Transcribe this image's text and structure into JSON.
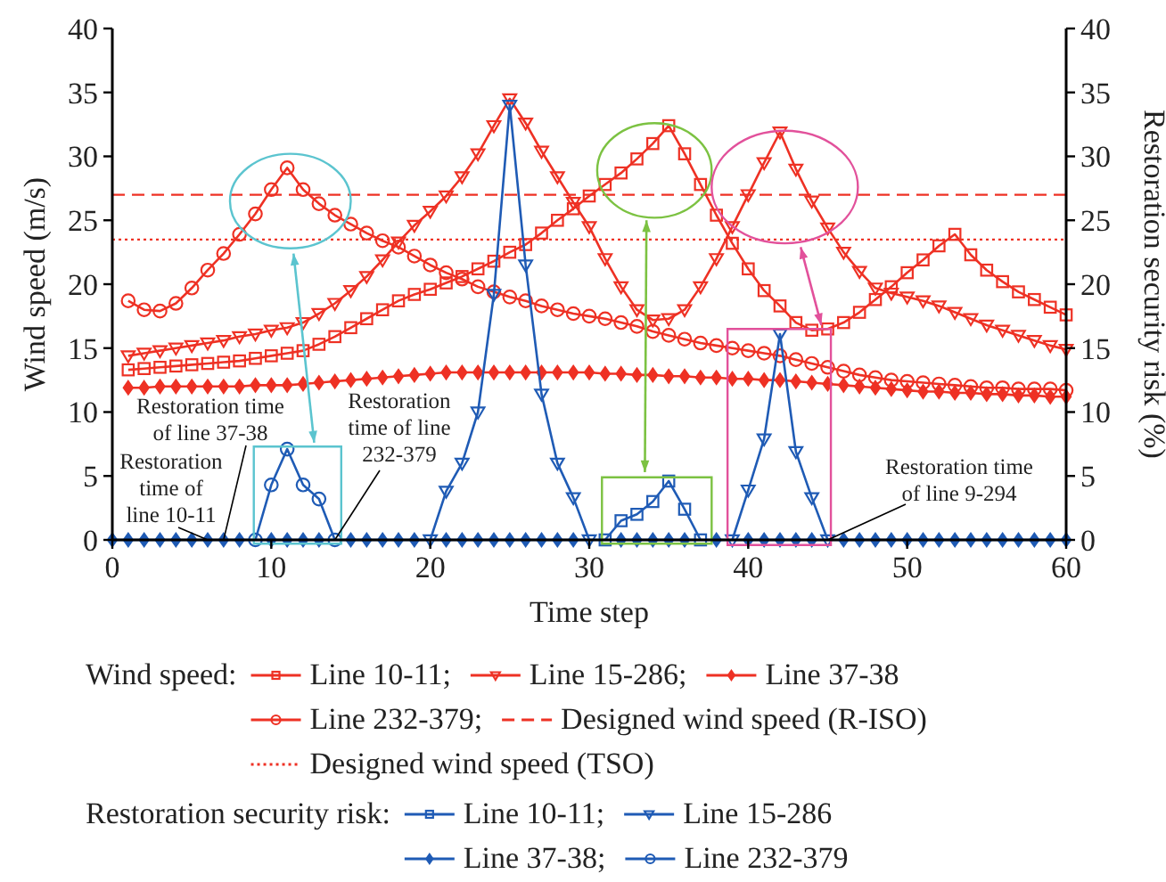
{
  "chart_data": {
    "type": "line",
    "xlabel": "Time step",
    "ylabel": "Wind speed (m/s)",
    "y2label": "Restoration security risk (%)",
    "legend_title": [
      "Wind speed:",
      "Restoration security risk:"
    ],
    "x": [
      1,
      2,
      3,
      4,
      5,
      6,
      7,
      8,
      9,
      10,
      11,
      12,
      13,
      14,
      15,
      16,
      17,
      18,
      19,
      20,
      21,
      22,
      23,
      24,
      25,
      26,
      27,
      28,
      29,
      30,
      31,
      32,
      33,
      34,
      35,
      36,
      37,
      38,
      39,
      40,
      41,
      42,
      43,
      44,
      45,
      46,
      47,
      48,
      49,
      50,
      51,
      52,
      53,
      54,
      55,
      56,
      57,
      58,
      59,
      60
    ],
    "xlim": [
      0,
      60
    ],
    "xticks": [
      0,
      10,
      20,
      30,
      40,
      50,
      60
    ],
    "ylim": [
      0,
      40
    ],
    "yticks": [
      0,
      5,
      10,
      15,
      20,
      25,
      30,
      35,
      40
    ],
    "y2lim": [
      0,
      40
    ],
    "y2ticks": [
      0,
      5,
      10,
      15,
      20,
      25,
      30,
      35,
      40
    ],
    "grid": false,
    "legend": "bottom",
    "line_style": "solid",
    "series": [
      {
        "name": "Line 10-11;",
        "color": "#ee3124",
        "axis": "y",
        "marker": "square",
        "values": [
          13.3,
          13.4,
          13.5,
          13.6,
          13.7,
          13.8,
          13.9,
          14.0,
          14.2,
          14.4,
          14.6,
          14.8,
          15.3,
          15.9,
          16.6,
          17.3,
          18.0,
          18.7,
          19.2,
          19.6,
          20.1,
          20.6,
          21.2,
          21.8,
          22.5,
          23.1,
          24.0,
          25.0,
          25.9,
          26.9,
          27.8,
          28.7,
          29.8,
          31.0,
          32.4,
          30.2,
          27.8,
          25.4,
          23.2,
          21.2,
          19.5,
          18.3,
          17.0,
          16.4,
          16.5,
          17.0,
          17.8,
          18.8,
          19.8,
          20.9,
          21.9,
          23.0,
          23.9,
          22.3,
          21.1,
          20.2,
          19.4,
          18.8,
          18.2,
          17.6
        ]
      },
      {
        "name": "Line 15-286;",
        "color": "#ee3124",
        "axis": "y",
        "marker": "triangle",
        "values": [
          14.4,
          14.6,
          14.8,
          15.0,
          15.2,
          15.4,
          15.6,
          15.9,
          16.1,
          16.4,
          16.6,
          17.0,
          17.7,
          18.5,
          19.5,
          20.6,
          21.9,
          23.3,
          24.6,
          25.7,
          26.9,
          28.4,
          30.2,
          32.4,
          34.5,
          32.6,
          30.4,
          28.4,
          26.4,
          24.5,
          22.0,
          19.8,
          18.0,
          17.2,
          17.3,
          18.0,
          19.8,
          22.0,
          24.5,
          27.0,
          29.5,
          31.9,
          29.0,
          26.5,
          24.4,
          22.5,
          21.0,
          19.7,
          19.3,
          19.0,
          18.7,
          18.3,
          17.8,
          17.3,
          16.8,
          16.4,
          16.0,
          15.6,
          15.2,
          14.9
        ]
      },
      {
        "name": "Line 37-38",
        "color": "#ee3124",
        "axis": "y",
        "marker": "diamond",
        "values": [
          11.9,
          11.9,
          12.0,
          12.0,
          12.0,
          12.0,
          12.0,
          12.0,
          12.1,
          12.1,
          12.1,
          12.2,
          12.3,
          12.4,
          12.5,
          12.6,
          12.7,
          12.8,
          12.9,
          13.0,
          13.1,
          13.1,
          13.1,
          13.1,
          13.1,
          13.1,
          13.1,
          13.1,
          13.1,
          13.1,
          13.0,
          13.0,
          12.9,
          12.9,
          12.8,
          12.8,
          12.7,
          12.7,
          12.6,
          12.6,
          12.5,
          12.5,
          12.4,
          12.3,
          12.2,
          12.1,
          12.0,
          11.9,
          11.8,
          11.7,
          11.6,
          11.6,
          11.5,
          11.5,
          11.4,
          11.4,
          11.3,
          11.3,
          11.2,
          11.2
        ]
      },
      {
        "name": "Line 232-379;",
        "color": "#ee3124",
        "axis": "y",
        "marker": "circle",
        "values": [
          18.7,
          18.0,
          17.9,
          18.5,
          19.7,
          21.1,
          22.4,
          23.9,
          25.5,
          27.4,
          29.1,
          27.4,
          26.3,
          25.4,
          24.7,
          24.0,
          23.4,
          22.9,
          22.2,
          21.5,
          20.9,
          20.4,
          19.8,
          19.4,
          19.0,
          18.7,
          18.3,
          18.0,
          17.7,
          17.5,
          17.3,
          17.0,
          16.7,
          16.3,
          16.0,
          15.7,
          15.4,
          15.2,
          15.0,
          14.8,
          14.6,
          14.4,
          14.1,
          13.8,
          13.5,
          13.2,
          12.9,
          12.7,
          12.5,
          12.4,
          12.3,
          12.2,
          12.1,
          12.0,
          11.9,
          11.9,
          11.8,
          11.8,
          11.8,
          11.7
        ]
      },
      {
        "name": "Line 10-11;",
        "color": "#1f5bb5",
        "axis": "y2",
        "marker": "square",
        "x": [
          31,
          32,
          33,
          34,
          35,
          36,
          37
        ],
        "values": [
          0,
          1.5,
          2.0,
          3.0,
          4.6,
          2.4,
          0
        ]
      },
      {
        "name": "Line 15-286",
        "color": "#1f5bb5",
        "axis": "y2",
        "marker": "triangle",
        "x": [
          20,
          21,
          22,
          23,
          24,
          25,
          26,
          27,
          28,
          29,
          30,
          34,
          39,
          40,
          41,
          42,
          43,
          44,
          45
        ],
        "values": [
          0,
          3.8,
          6.0,
          10.0,
          19.2,
          34.0,
          21.5,
          11.4,
          6.0,
          3.3,
          0,
          null,
          0,
          3.9,
          7.9,
          16.1,
          6.9,
          3.3,
          0
        ]
      },
      {
        "name": "Line 37-38;",
        "color": "#1f5bb5",
        "axis": "y2",
        "marker": "diamond",
        "x": [
          0,
          1,
          2,
          3,
          4,
          5,
          6,
          7,
          8,
          9,
          10,
          11,
          12,
          13,
          14,
          15,
          16,
          17,
          18,
          19,
          20,
          21,
          22,
          23,
          24,
          25,
          26,
          27,
          28,
          29,
          30,
          31,
          32,
          33,
          34,
          35,
          36,
          37,
          38,
          39,
          40,
          41,
          42,
          43,
          44,
          45,
          46,
          47,
          48,
          49,
          50,
          51,
          52,
          53,
          54,
          55,
          56,
          57,
          58,
          59,
          60
        ],
        "values": [
          0,
          0,
          0,
          0,
          0,
          0,
          0,
          0,
          0,
          0,
          0,
          0,
          0,
          0,
          0,
          0,
          0,
          0,
          0,
          0,
          0,
          0,
          0,
          0,
          0,
          0,
          0,
          0,
          0,
          0,
          0,
          0,
          0,
          0,
          0,
          0,
          0,
          0,
          0,
          0,
          0,
          0,
          0,
          0,
          0,
          0,
          0,
          0,
          0,
          0,
          0,
          0,
          0,
          0,
          0,
          0,
          0,
          0,
          0,
          0,
          0
        ]
      },
      {
        "name": "Line 232-379",
        "color": "#1f5bb5",
        "axis": "y2",
        "marker": "circle",
        "x": [
          9,
          10,
          11,
          12,
          13,
          14
        ],
        "values": [
          0,
          4.3,
          7.1,
          4.3,
          3.2,
          0
        ]
      }
    ],
    "ref_lines": [
      {
        "axis": "y",
        "value": 27,
        "label": "Designed wind speed (R-ISO)",
        "color": "#ee3124",
        "line_style": "dashed"
      },
      {
        "axis": "y",
        "value": 23.5,
        "label": "Designed wind speed (TSO)",
        "color": "#ee3124",
        "line_style": "dotted"
      }
    ],
    "annotations": [
      {
        "text": "Restoration time of line 37-38",
        "x": 7,
        "y": 0
      },
      {
        "text": "Restoration time of line 10-11",
        "x": 6,
        "y": 0
      },
      {
        "text": "Restoration time of line 232-379",
        "x": 14,
        "y": 0
      },
      {
        "text": "Restoration time of line 9-294",
        "x": 45,
        "y": 0
      }
    ]
  }
}
